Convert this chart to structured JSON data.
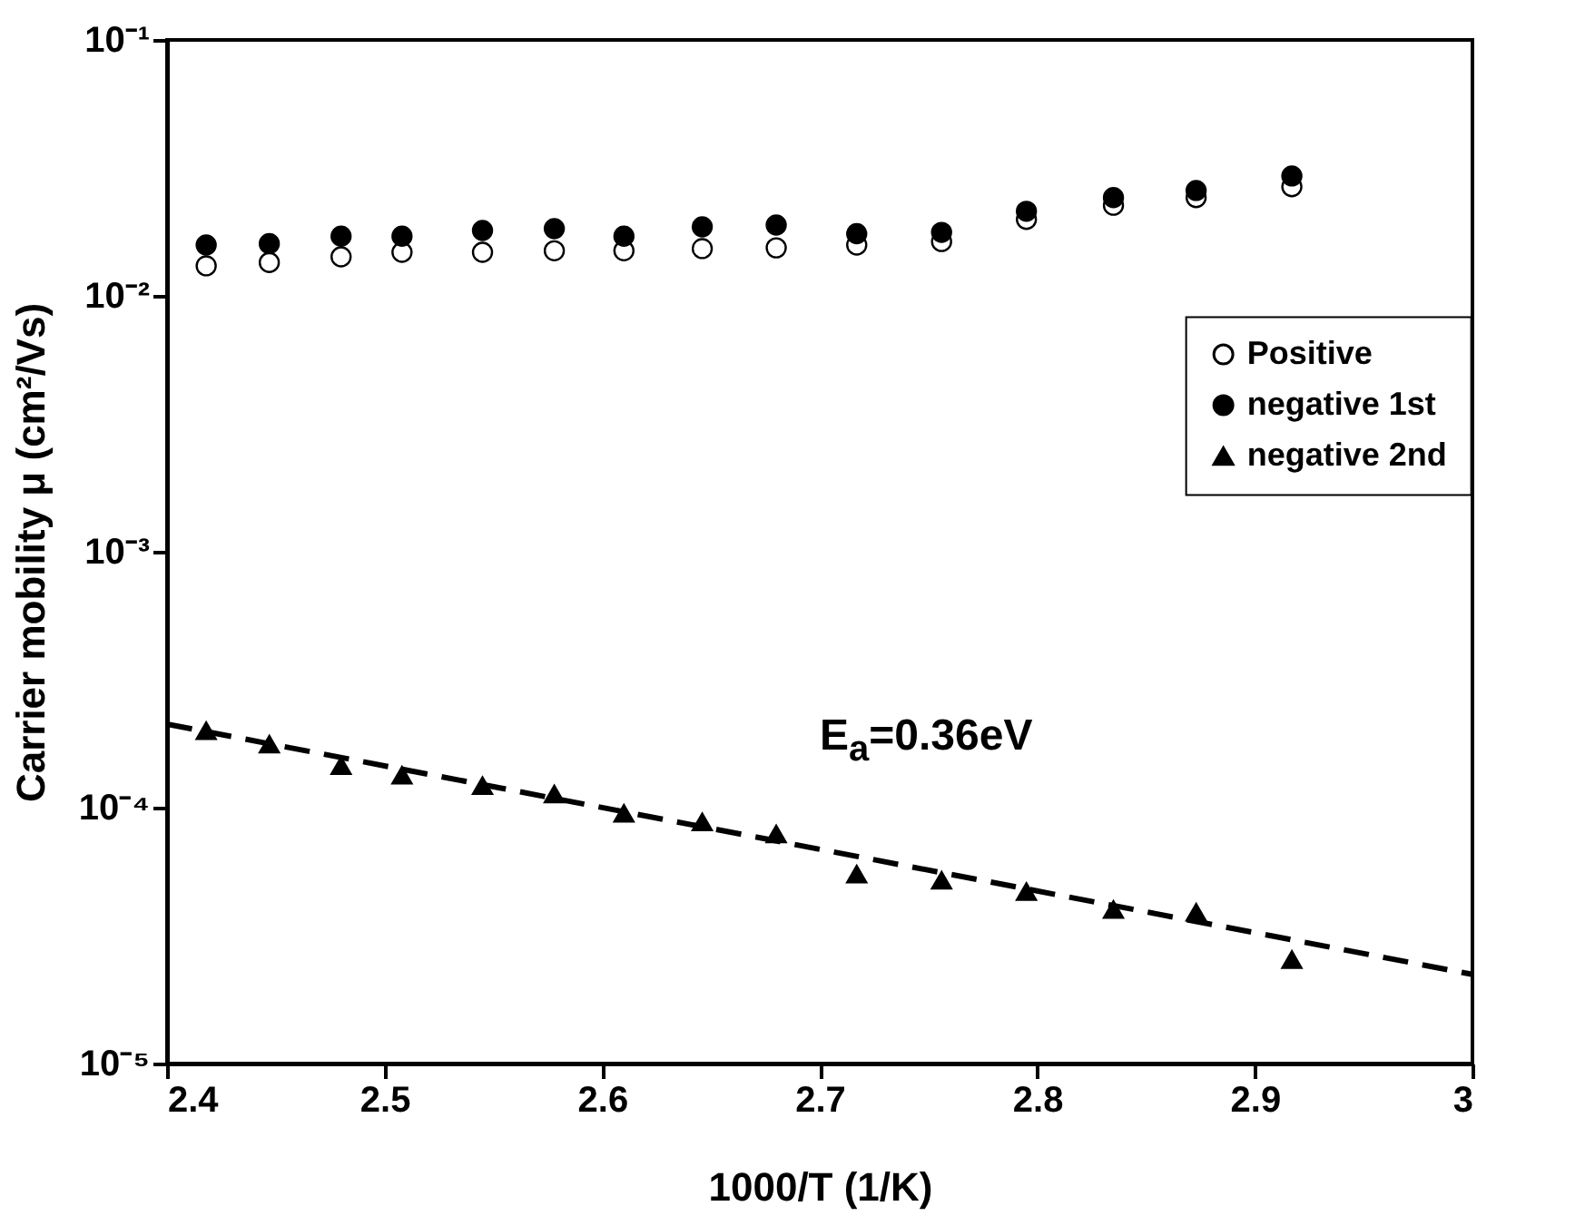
{
  "chart_data": {
    "type": "scatter",
    "xlabel": "1000/T (1/K)",
    "ylabel": "Carrier mobility μ (cm²/Vs)",
    "log": "y",
    "xlim": [
      2.4,
      3.0
    ],
    "xticks": [
      2.4,
      2.5,
      2.6,
      2.7,
      2.8,
      2.9,
      3
    ],
    "ylim": [
      1e-05,
      0.1
    ],
    "yticks": [
      {
        "value": 1e-05,
        "label": "10⁻⁵"
      },
      {
        "value": 0.0001,
        "label": "10⁻⁴"
      },
      {
        "value": 0.001,
        "label": "10⁻³"
      },
      {
        "value": 0.01,
        "label": "10⁻²"
      },
      {
        "value": 0.1,
        "label": "10⁻¹"
      }
    ],
    "grid": false,
    "legend": "right",
    "marker": "circle",
    "x": [
      2.418,
      2.447,
      2.48,
      2.508,
      2.545,
      2.578,
      2.61,
      2.646,
      2.68,
      2.717,
      2.756,
      2.795,
      2.835,
      2.873,
      2.917
    ],
    "series": [
      {
        "name": "Positive",
        "color": "#ffffff",
        "values": [
          0.0131,
          0.0135,
          0.0142,
          0.0148,
          0.0148,
          0.015,
          0.015,
          0.0153,
          0.0154,
          0.0158,
          0.0163,
          0.0199,
          0.0226,
          0.0242,
          0.0267
        ]
      },
      {
        "name": "negative 1st",
        "color": "#000000",
        "values": [
          0.0158,
          0.016,
          0.0171,
          0.0171,
          0.018,
          0.0183,
          0.0171,
          0.0186,
          0.0189,
          0.0175,
          0.0177,
          0.0214,
          0.0242,
          0.0258,
          0.0294
        ]
      },
      {
        "name": "negative 2nd",
        "marker": "triangle",
        "color": "#000000",
        "values": [
          0.0002,
          0.000177,
          0.000146,
          0.000134,
          0.000122,
          0.000113,
          9.5e-05,
          8.8e-05,
          7.9e-05,
          5.5e-05,
          5.2e-05,
          4.7e-05,
          4e-05,
          3.9e-05,
          2.55e-05
        ]
      },
      {
        "type": "line",
        "line_style": "dashed",
        "marker": "none",
        "color": "#000000",
        "x": [
          2.4,
          3.0
        ],
        "values": [
          0.000212,
          2.23e-05
        ]
      }
    ],
    "annotations": [
      "E$_{a}$=0.36eV"
    ]
  }
}
